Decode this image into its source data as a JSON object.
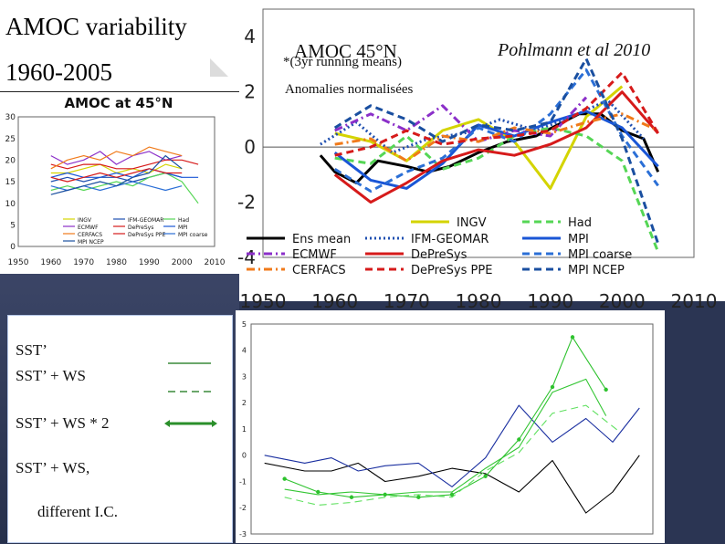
{
  "slide": {
    "title_line1": "AMOC variability",
    "title_line2": "1960-2005",
    "top_title": "AMOC 45°N",
    "top_subtitle": "*(3yr running means)",
    "top_subtitle2": "Anomalies normalisées",
    "credit": "Pohlmann et al 2010",
    "legend_box": {
      "items": [
        "SST’",
        "SST’ + WS",
        "SST’ + WS * 2",
        "SST’ + WS,",
        "different I.C."
      ]
    }
  },
  "chart_data": [
    {
      "type": "line",
      "title": "AMOC at 45°N",
      "xlim": [
        1950,
        2010
      ],
      "ylim": [
        0,
        30
      ],
      "xticks": [
        1950,
        1960,
        1970,
        1980,
        1990,
        2000,
        2010
      ],
      "yticks": [
        0,
        5,
        10,
        15,
        20,
        25,
        30
      ],
      "legend": [
        "INGV",
        "IFM-GEOMAR",
        "Had",
        "ECMWF",
        "DePreSys",
        "MPI",
        "CERFACS",
        "DePreSys PPE",
        "MPI coarse",
        "MPI NCEP"
      ],
      "series": [
        {
          "name": "INGV",
          "color": "#d4d400",
          "x": [
            1960,
            1965,
            1970,
            1975,
            1980,
            1985,
            1990,
            1995,
            2000
          ],
          "y": [
            17,
            17,
            18,
            19,
            17,
            18,
            17,
            19,
            18
          ]
        },
        {
          "name": "IFM-GEOMAR",
          "color": "#1f4fb0",
          "x": [
            1960,
            1965,
            1970,
            1975,
            1980,
            1985,
            1990,
            1995,
            2000
          ],
          "y": [
            15,
            16,
            15,
            16,
            16,
            15,
            16,
            17,
            16
          ]
        },
        {
          "name": "Had",
          "color": "#55d655",
          "x": [
            1960,
            1965,
            1970,
            1975,
            1980,
            1985,
            1990,
            1995,
            2000,
            2005
          ],
          "y": [
            13,
            14,
            13,
            14,
            15,
            14,
            16,
            17,
            15,
            10
          ]
        },
        {
          "name": "ECMWF",
          "color": "#8b2fc9",
          "x": [
            1960,
            1965,
            1970,
            1975,
            1980,
            1985,
            1990,
            1995,
            2000
          ],
          "y": [
            21,
            19,
            20,
            22,
            19,
            21,
            22,
            20,
            21
          ]
        },
        {
          "name": "DePreSys",
          "color": "#d61a1a",
          "x": [
            1960,
            1965,
            1970,
            1975,
            1980,
            1985,
            1990,
            1995,
            2000,
            2005
          ],
          "y": [
            19,
            18,
            19,
            19,
            18,
            18,
            19,
            20,
            20,
            19
          ]
        },
        {
          "name": "MPI",
          "color": "#1a56d6",
          "x": [
            1960,
            1965,
            1970,
            1975,
            1980,
            1985,
            1990,
            1995,
            2000,
            2005
          ],
          "y": [
            16,
            17,
            16,
            16,
            17,
            16,
            18,
            17,
            16,
            16
          ]
        },
        {
          "name": "CERFACS",
          "color": "#f07a1a",
          "x": [
            1960,
            1965,
            1970,
            1975,
            1980,
            1985,
            1990,
            1995,
            2000
          ],
          "y": [
            18,
            20,
            21,
            20,
            22,
            21,
            23,
            22,
            21
          ]
        },
        {
          "name": "DePreSys PPE",
          "color": "#d61a1a",
          "x": [
            1960,
            1965,
            1970,
            1975,
            1980,
            1985,
            1990,
            1995,
            2000
          ],
          "y": [
            16,
            15,
            16,
            17,
            16,
            17,
            18,
            17,
            17
          ]
        },
        {
          "name": "MPI coarse",
          "color": "#2b6fd6",
          "x": [
            1960,
            1965,
            1970,
            1975,
            1980,
            1985,
            1990,
            1995,
            2000
          ],
          "y": [
            14,
            13,
            14,
            13,
            14,
            15,
            14,
            13,
            14
          ]
        },
        {
          "name": "MPI NCEP",
          "color": "#1a4fa0",
          "x": [
            1960,
            1965,
            1970,
            1975,
            1980,
            1985,
            1990,
            1995,
            2000
          ],
          "y": [
            12,
            13,
            14,
            15,
            14,
            16,
            17,
            21,
            18
          ]
        }
      ]
    },
    {
      "type": "line",
      "title": "AMOC 45°N",
      "xlim": [
        1950,
        2010
      ],
      "ylim": [
        -4,
        5
      ],
      "xticks": [
        1950,
        1960,
        1970,
        1980,
        1990,
        2000,
        2010
      ],
      "yticks": [
        -4,
        -2,
        0,
        2,
        4
      ],
      "legend": [
        "INGV",
        "Had",
        "Ens mean",
        "IFM-GEOMAR",
        "MPI",
        "ECMWF",
        "DePreSys",
        "MPI coarse",
        "CERFACS",
        "DePreSys PPE",
        "MPI NCEP"
      ],
      "series": [
        {
          "name": "Ens mean",
          "color": "#000000",
          "style": "solid",
          "x": [
            1958,
            1960,
            1963,
            1966,
            1970,
            1973,
            1976,
            1980,
            1984,
            1988,
            1991,
            1994,
            1997,
            2000,
            2003,
            2005
          ],
          "y": [
            -0.3,
            -0.9,
            -1.3,
            -0.5,
            -0.7,
            -0.9,
            -0.7,
            -0.2,
            0.2,
            0.4,
            0.8,
            1.2,
            1.2,
            0.6,
            0.3,
            -0.9
          ]
        },
        {
          "name": "INGV",
          "color": "#d4d400",
          "style": "solid",
          "x": [
            1960,
            1965,
            1970,
            1975,
            1980,
            1985,
            1990,
            1995,
            2000
          ],
          "y": [
            0.5,
            0.2,
            -0.5,
            0.6,
            1.0,
            0.2,
            -1.5,
            1.1,
            2.2
          ]
        },
        {
          "name": "IFM-GEOMAR",
          "color": "#1f4fb0",
          "style": "dotted",
          "x": [
            1958,
            1963,
            1968,
            1973,
            1978,
            1983,
            1988,
            1993,
            1998,
            2003
          ],
          "y": [
            0.1,
            0.9,
            -0.2,
            0.3,
            0.5,
            1.0,
            0.6,
            1.1,
            1.7,
            0.3
          ]
        },
        {
          "name": "Had",
          "color": "#55d655",
          "style": "dashed",
          "x": [
            1960,
            1965,
            1970,
            1975,
            1980,
            1985,
            1990,
            1995,
            2000,
            2005
          ],
          "y": [
            -0.4,
            -0.6,
            0.4,
            -0.8,
            -0.4,
            0.4,
            0.7,
            0.4,
            -0.5,
            -3.8
          ]
        },
        {
          "name": "MPI",
          "color": "#1a56d6",
          "style": "solid",
          "x": [
            1960,
            1965,
            1970,
            1975,
            1980,
            1985,
            1990,
            1995,
            2000,
            2005
          ],
          "y": [
            -0.2,
            -1.2,
            -1.5,
            -0.6,
            0.8,
            0.4,
            0.9,
            1.3,
            0.7,
            -0.7
          ]
        },
        {
          "name": "ECMWF",
          "color": "#8b2fc9",
          "style": "dashdot",
          "x": [
            1960,
            1965,
            1970,
            1975,
            1980,
            1985,
            1990,
            1995
          ],
          "y": [
            0.6,
            1.2,
            0.6,
            1.5,
            0.2,
            0.6,
            0.4,
            1.8
          ]
        },
        {
          "name": "DePreSys",
          "color": "#d61a1a",
          "style": "solid",
          "x": [
            1960,
            1965,
            1970,
            1975,
            1980,
            1985,
            1990,
            1995,
            2000,
            2005
          ],
          "y": [
            -1.0,
            -2.0,
            -1.3,
            -0.5,
            -0.1,
            -0.3,
            0.1,
            0.7,
            2.0,
            0.5
          ]
        },
        {
          "name": "MPI coarse",
          "color": "#2b6fd6",
          "style": "dashed",
          "x": [
            1960,
            1965,
            1970,
            1975,
            1980,
            1985,
            1990,
            1995,
            2000,
            2005
          ],
          "y": [
            -0.8,
            -1.6,
            -0.9,
            -0.4,
            0.7,
            0.2,
            1.2,
            2.8,
            0.4,
            -1.4
          ]
        },
        {
          "name": "CERFACS",
          "color": "#f07a1a",
          "style": "dashdot",
          "x": [
            1960,
            1965,
            1970,
            1975,
            1980,
            1985,
            1990,
            1995,
            2000,
            2005
          ],
          "y": [
            0.1,
            0.3,
            -0.5,
            0.4,
            0.2,
            0.7,
            0.5,
            0.9,
            1.2,
            0.6
          ]
        },
        {
          "name": "DePreSys PPE",
          "color": "#d61a1a",
          "style": "dashed",
          "x": [
            1960,
            1965,
            1970,
            1975,
            1980,
            1985,
            1990,
            1995,
            2000,
            2005
          ],
          "y": [
            -0.3,
            0.0,
            0.6,
            0.1,
            0.3,
            0.4,
            0.6,
            1.4,
            2.7,
            0.5
          ]
        },
        {
          "name": "MPI NCEP",
          "color": "#1a4fa0",
          "style": "dashed",
          "x": [
            1960,
            1965,
            1970,
            1975,
            1980,
            1985,
            1990,
            1995,
            2000,
            2005
          ],
          "y": [
            0.7,
            1.5,
            1.0,
            0.2,
            0.8,
            0.6,
            0.9,
            3.2,
            0.3,
            -3.5
          ]
        }
      ]
    },
    {
      "type": "line",
      "title": "",
      "xlim": [
        1950,
        2010
      ],
      "ylim": [
        -3,
        5
      ],
      "xticks": [],
      "yticks": [
        -3,
        -2,
        -1,
        0,
        1,
        2,
        3,
        4,
        5
      ],
      "series": [
        {
          "name": "SST’",
          "color": "#000000",
          "style": "solid",
          "x": [
            1952,
            1958,
            1962,
            1966,
            1970,
            1975,
            1980,
            1985,
            1990,
            1995,
            2000,
            2004,
            2008
          ],
          "y": [
            -0.3,
            -0.6,
            -0.6,
            -0.3,
            -1.0,
            -0.8,
            -0.5,
            -0.7,
            -1.4,
            -0.2,
            -2.2,
            -1.4,
            0.0
          ]
        },
        {
          "name": "SST’",
          "color": "#1a2fa0",
          "style": "solid",
          "x": [
            1952,
            1958,
            1962,
            1966,
            1970,
            1975,
            1980,
            1985,
            1990,
            1995,
            2000,
            2004,
            2008
          ],
          "y": [
            0.0,
            -0.3,
            -0.1,
            -0.6,
            -0.4,
            -0.3,
            -1.2,
            -0.1,
            1.9,
            0.5,
            1.4,
            0.5,
            1.8
          ]
        },
        {
          "name": "SST’ + WS",
          "color": "#34c634",
          "style": "solid",
          "x": [
            1955,
            1960,
            1965,
            1970,
            1975,
            1980,
            1985,
            1990,
            1995,
            2000,
            2003
          ],
          "y": [
            -1.3,
            -1.5,
            -1.4,
            -1.5,
            -1.4,
            -1.4,
            -0.5,
            0.3,
            2.4,
            2.9,
            1.5
          ]
        },
        {
          "name": "SST’ + WS * 2",
          "color": "#2ec22e",
          "style": "markers",
          "x": [
            1955,
            1960,
            1965,
            1970,
            1975,
            1980,
            1985,
            1990,
            1995,
            1998,
            2003
          ],
          "y": [
            -0.9,
            -1.4,
            -1.6,
            -1.5,
            -1.6,
            -1.5,
            -0.8,
            0.6,
            2.6,
            4.5,
            2.5
          ]
        },
        {
          "name": "SST’ + WS,",
          "color": "#5fe05f",
          "style": "dashed",
          "x": [
            1955,
            1960,
            1965,
            1970,
            1975,
            1980,
            1985,
            1990,
            1995,
            2000,
            2005
          ],
          "y": [
            -1.6,
            -1.9,
            -1.8,
            -1.6,
            -1.5,
            -1.6,
            -0.6,
            0.1,
            1.6,
            1.9,
            0.9
          ]
        }
      ]
    }
  ]
}
